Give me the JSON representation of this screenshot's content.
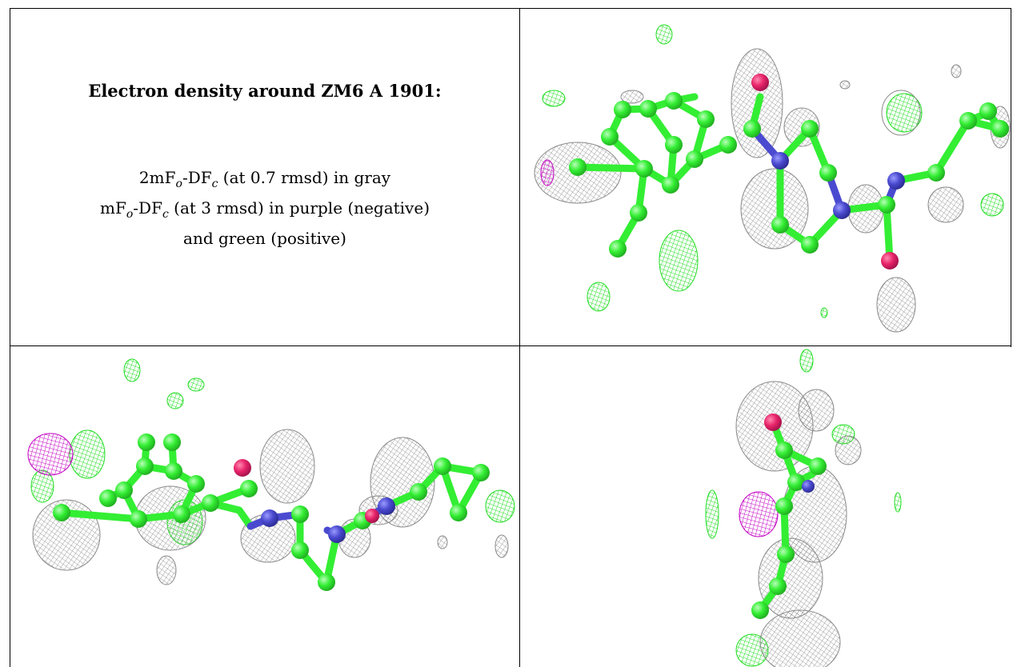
{
  "caption": {
    "title": "Electron density around ZM6 A 1901:",
    "line1_prefix": "2mF",
    "line1_sub1": "o",
    "line1_mid": "-DF",
    "line1_sub2": "c",
    "line1_suffix": " (at 0.7 rmsd) in gray",
    "line2_prefix": "mF",
    "line2_sub1": "o",
    "line2_mid": "-DF",
    "line2_sub2": "c",
    "line2_suffix": " (at 3 rmsd) in purple (negative)",
    "line3": "and green (positive)"
  },
  "colors": {
    "carbon": "#33ee33",
    "nitrogen": "#4a4ad0",
    "oxygen": "#e8246a",
    "mesh_2fofc": "#8a8a8a",
    "mesh_positive": "#22dd22",
    "mesh_negative": "#c400c4",
    "table_border": "#000000"
  },
  "panels": [
    {
      "name": "view-top-right",
      "ligand": "ZM6"
    },
    {
      "name": "view-bottom-left",
      "ligand": "ZM6"
    },
    {
      "name": "view-bottom-right",
      "ligand": "ZM6"
    }
  ]
}
